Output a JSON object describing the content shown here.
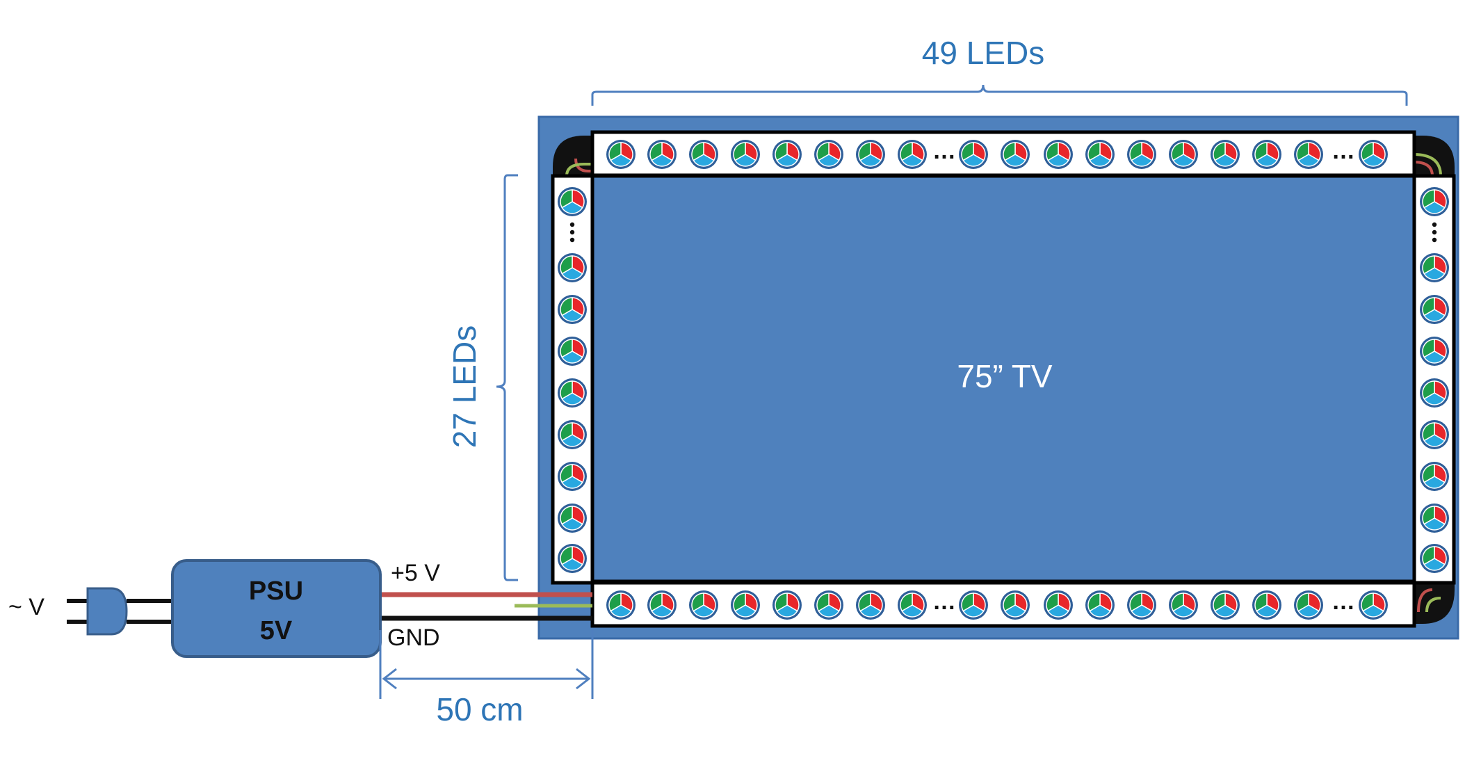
{
  "labels": {
    "top_leds": "49 LEDs",
    "side_leds": "27 LEDs",
    "tv": "75” TV",
    "psu_line1": "PSU",
    "psu_line2": "5V",
    "plus5v": "+5 V",
    "gnd": "GND",
    "ac": "~ V",
    "cable_length": "50 cm",
    "ellipsis": "…"
  },
  "colors": {
    "tv_fill": "#4f81bd",
    "tv_frame": "#3a6aa8",
    "blue_text": "#2e75b6",
    "bracket": "#4f7fbf",
    "strip_fill": "#ffffff",
    "led_red": "#e8262a",
    "led_green": "#1e9e4a",
    "led_blue": "#29a8e0",
    "led_ring": "#2f5f99",
    "wire_power": "#c0504d",
    "wire_data": "#9bbb59",
    "wire_gnd": "#111111",
    "psu_fill": "#4f81bd",
    "psu_stroke": "#385d8a"
  }
}
